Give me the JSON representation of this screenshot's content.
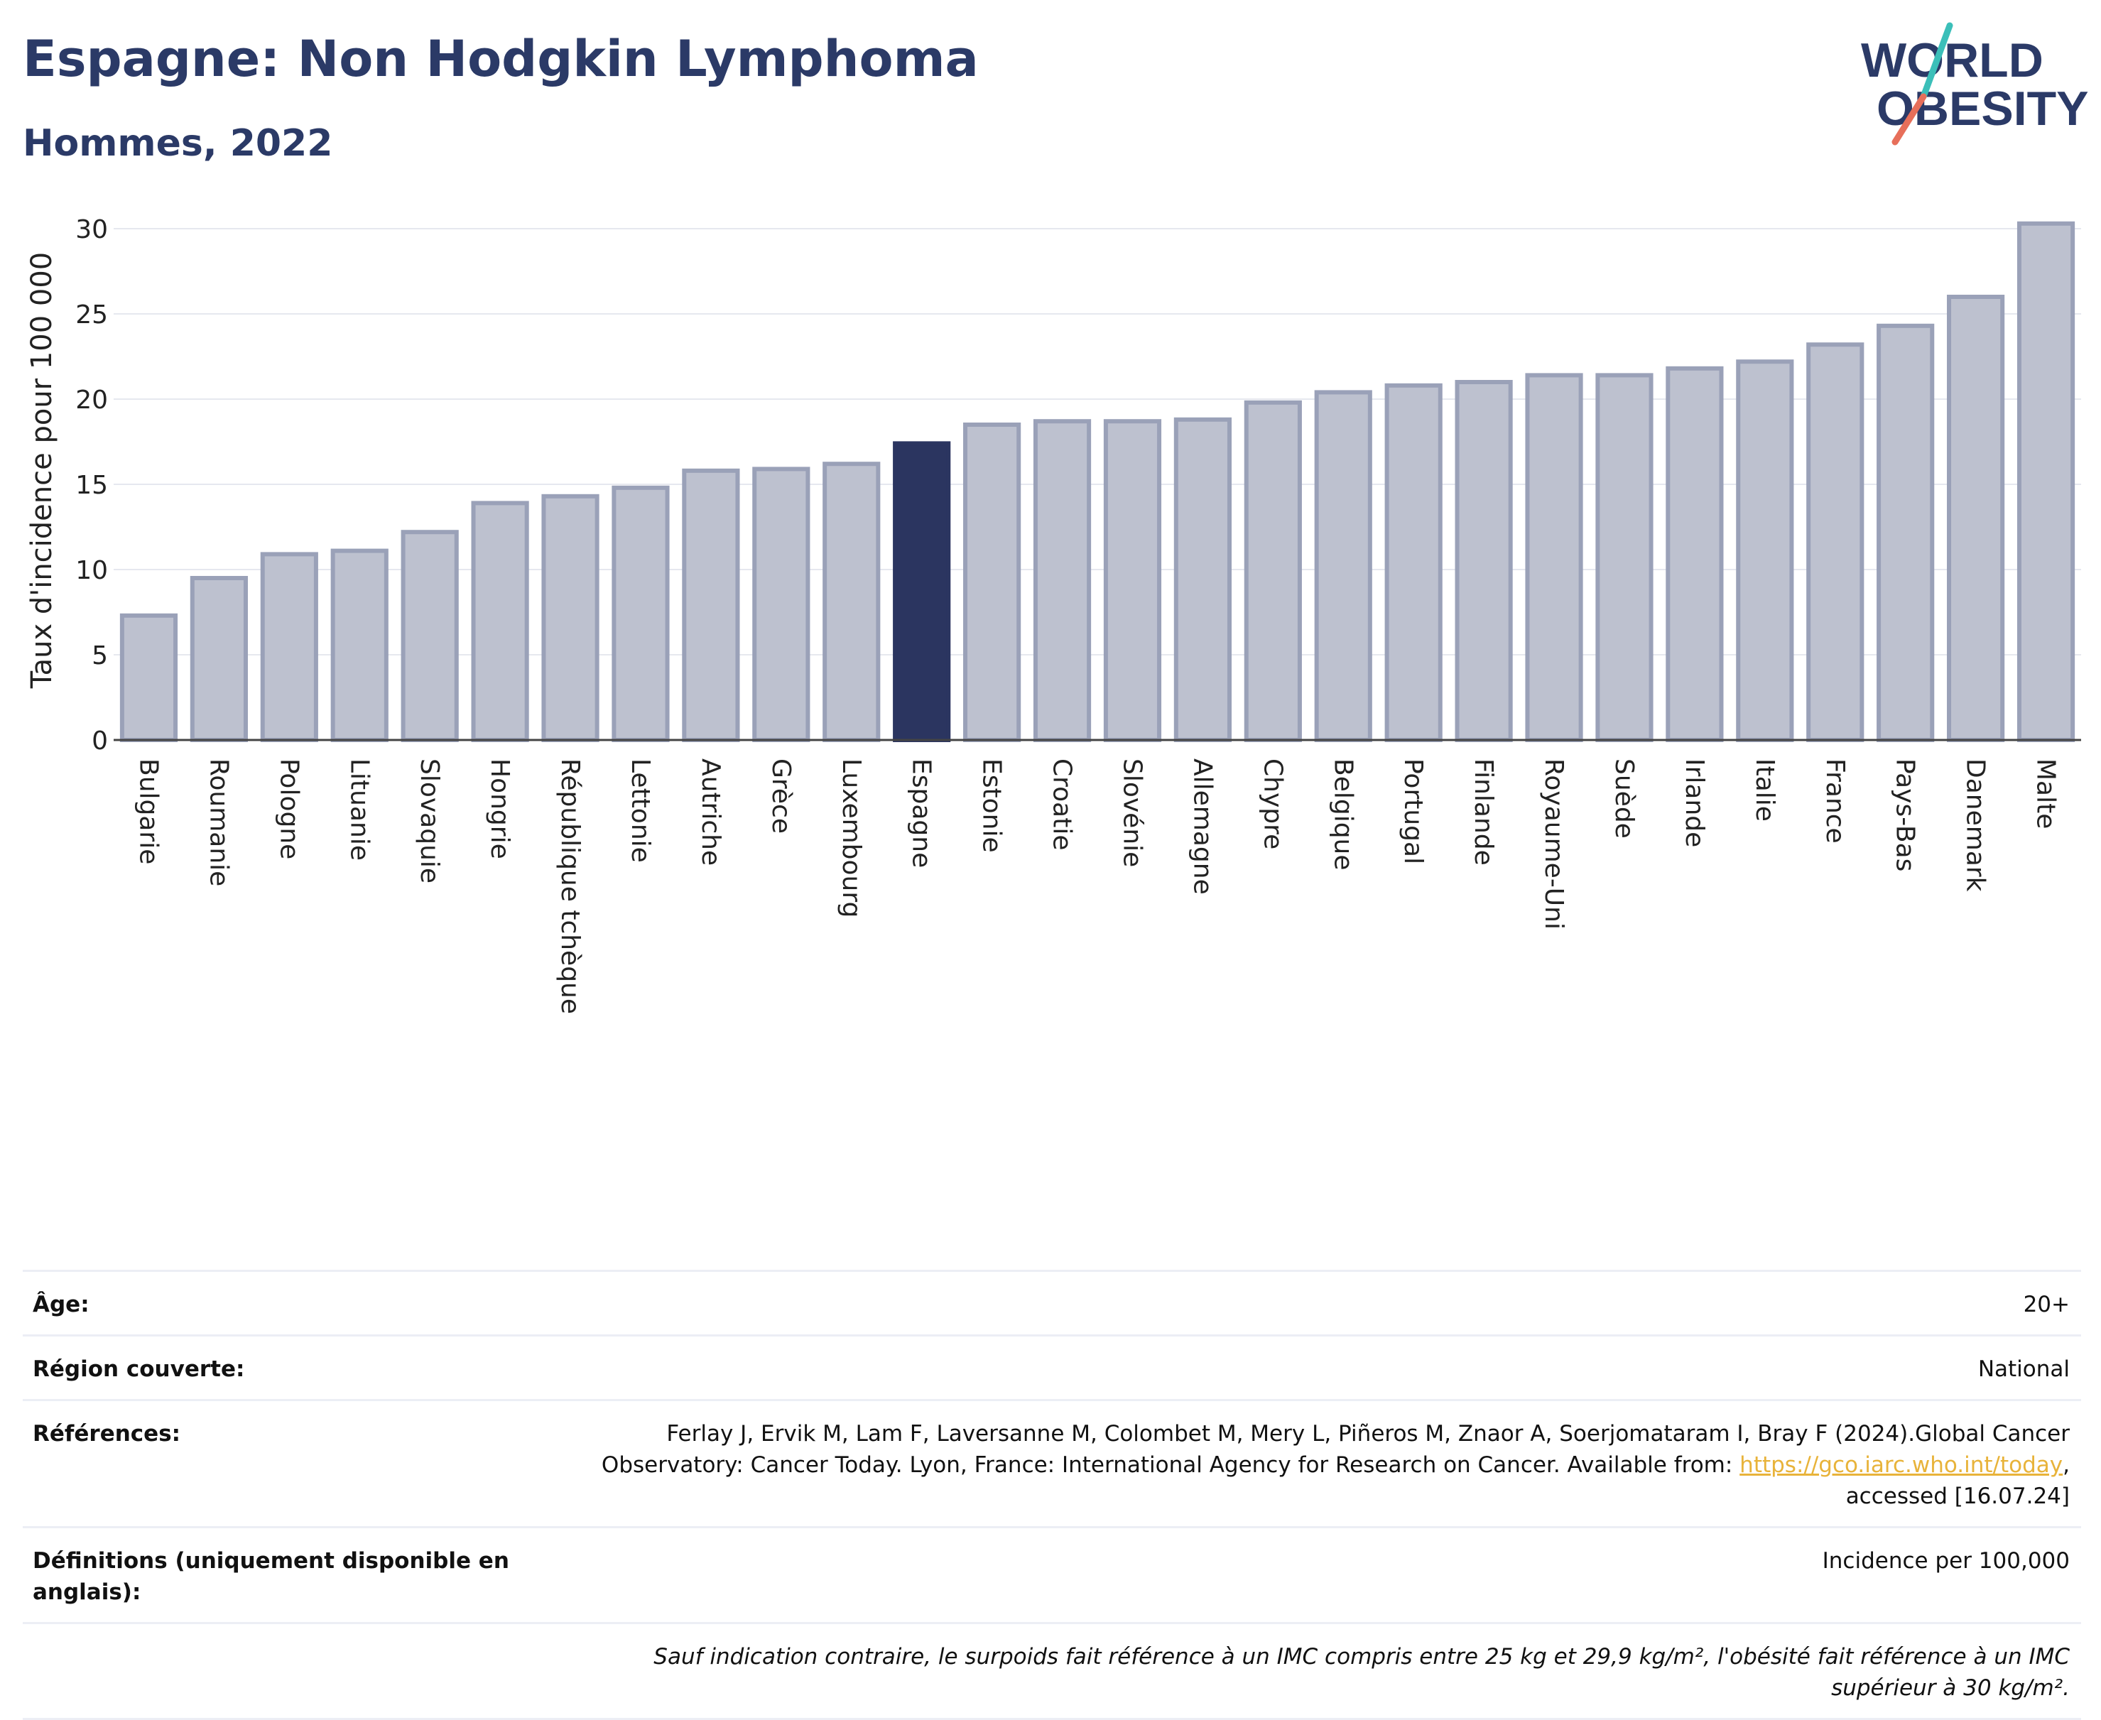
{
  "header": {
    "title": "Espagne: Non Hodgkin Lymphoma",
    "subtitle": "Hommes, 2022"
  },
  "logo": {
    "line1": "WORLD",
    "line2": "OBESITY",
    "icon": "world-obesity-logo"
  },
  "colors": {
    "highlight": "#2b3560",
    "bar": "#bdc1cf",
    "bar_border": "#9aa1b8",
    "title": "#2b3a67",
    "link": "#e8b33a",
    "logo_teal": "#3bbfb9",
    "logo_coral": "#e76f5a"
  },
  "chart_data": {
    "type": "bar",
    "title": "Espagne: Non Hodgkin Lymphoma",
    "subtitle": "Hommes, 2022",
    "xlabel": "",
    "ylabel": "Taux d'incidence pour 100 000",
    "ylim": [
      0,
      31
    ],
    "yticks": [
      0,
      5,
      10,
      15,
      20,
      25,
      30
    ],
    "grid": true,
    "highlight": "Espagne",
    "categories": [
      "Bulgarie",
      "Roumanie",
      "Pologne",
      "Lituanie",
      "Slovaquie",
      "Hongrie",
      "République tchèque",
      "Lettonie",
      "Autriche",
      "Grèce",
      "Luxembourg",
      "Espagne",
      "Estonie",
      "Croatie",
      "Slovénie",
      "Allemagne",
      "Chypre",
      "Belgique",
      "Portugal",
      "Finlande",
      "Royaume-Uni",
      "Suède",
      "Irlande",
      "Italie",
      "France",
      "Pays-Bas",
      "Danemark",
      "Malte"
    ],
    "values": [
      7.3,
      9.5,
      10.9,
      11.1,
      12.2,
      13.9,
      14.3,
      14.8,
      15.8,
      15.9,
      16.2,
      17.4,
      18.5,
      18.7,
      18.7,
      18.8,
      19.8,
      20.4,
      20.8,
      21.0,
      21.4,
      21.4,
      21.8,
      22.2,
      23.2,
      24.3,
      26.0,
      30.3
    ]
  },
  "meta": {
    "age_label": "Âge:",
    "age_value": "20+",
    "region_label": "Région couverte:",
    "region_value": "National",
    "refs_label": "Références:",
    "refs_text1": "Ferlay J, Ervik M, Lam F, Laversanne M, Colombet M, Mery L, Piñeros M, Znaor A, Soerjomataram I, Bray F (2024).Global Cancer",
    "refs_text2": "Observatory: Cancer Today. Lyon, France: International Agency for Research on Cancer. Available from: ",
    "refs_link": "https://gco.iarc.who.int/today",
    "refs_text3": ",",
    "refs_text4": "accessed [16.07.24]",
    "defs_label": "Définitions (uniquement disponible en anglais):",
    "defs_value": "Incidence per 100,000",
    "note": "Sauf indication contraire, le surpoids fait référence à un IMC compris entre 25 kg et 29,9 kg/m², l'obésité fait référence à un IMC supérieur à 30 kg/m²."
  }
}
